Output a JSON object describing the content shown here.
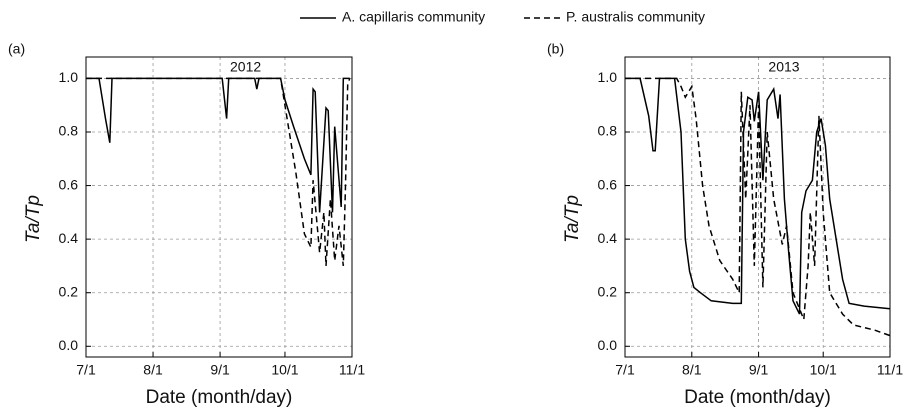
{
  "chart_data": [
    {
      "type": "line",
      "panel": "(a)",
      "annotation": "2012",
      "x_label": "Date (month/day)",
      "y_label": "Ta/Tp",
      "xlim": [
        "7/1",
        "11/1"
      ],
      "xticks": [
        "7/1",
        "8/1",
        "9/1",
        "10/1",
        "11/1"
      ],
      "ylim": [
        -0.04,
        1.08
      ],
      "yticks": [
        {
          "value": 0,
          "label": "0.0"
        },
        0.2,
        0.4,
        0.6,
        0.8,
        {
          "value": 1,
          "label": "1.0"
        }
      ],
      "grid": true,
      "series": [
        {
          "name": "A. capillaris community",
          "color": "#000000",
          "linestyle": "solid",
          "x": [
            "7/1",
            "7/7",
            "7/10",
            "7/12",
            "7/13",
            "9/2",
            "9/4",
            "9/5",
            "9/17",
            "9/18",
            "9/19",
            "9/29",
            "10/1",
            "10/5",
            "10/10",
            "10/13",
            "10/14",
            "10/15",
            "10/17",
            "10/20",
            "10/21",
            "10/23",
            "10/24",
            "10/27",
            "10/28",
            "10/31"
          ],
          "values": [
            1,
            1,
            0.85,
            0.76,
            1,
            1,
            0.85,
            1,
            1,
            0.96,
            1,
            1,
            0.92,
            0.82,
            0.7,
            0.64,
            0.96,
            0.95,
            0.5,
            0.89,
            0.88,
            0.5,
            0.82,
            0.52,
            1,
            1
          ]
        },
        {
          "name": "P. australis community",
          "color": "#000000",
          "linestyle": "dashed",
          "x": [
            "7/1",
            "9/29",
            "10/2",
            "10/6",
            "10/10",
            "10/13",
            "10/14",
            "10/17",
            "10/19",
            "10/20",
            "10/22",
            "10/24",
            "10/26",
            "10/28",
            "10/29",
            "10/30",
            "10/31"
          ],
          "values": [
            1,
            1,
            0.85,
            0.65,
            0.42,
            0.37,
            0.62,
            0.35,
            0.5,
            0.3,
            0.55,
            0.32,
            0.45,
            0.3,
            0.6,
            0.98,
            1
          ]
        }
      ]
    },
    {
      "type": "line",
      "panel": "(b)",
      "annotation": "2013",
      "x_label": "Date (month/day)",
      "y_label": "Ta/Tp",
      "xlim": [
        "7/1",
        "11/1"
      ],
      "xticks": [
        "7/1",
        "8/1",
        "9/1",
        "10/1",
        "11/1"
      ],
      "ylim": [
        -0.04,
        1.08
      ],
      "yticks": [
        {
          "value": 0,
          "label": "0.0"
        },
        0.2,
        0.4,
        0.6,
        0.8,
        {
          "value": 1,
          "label": "1.0"
        }
      ],
      "grid": true,
      "series": [
        {
          "color": "#000000",
          "linestyle": "solid",
          "x": [
            "7/1",
            "7/8",
            "7/12",
            "7/14",
            "7/15",
            "7/17",
            "7/24",
            "7/27",
            "7/29",
            "7/31",
            "8/2",
            "8/5",
            "8/10",
            "8/20",
            "8/24",
            "8/25",
            "8/27",
            "8/29",
            "8/30",
            "9/1",
            "9/3",
            "9/5",
            "9/8",
            "9/10",
            "9/11",
            "9/13",
            "9/15",
            "9/17",
            "9/20",
            "9/21",
            "9/23",
            "9/26",
            "9/28",
            "9/30",
            "10/2",
            "10/4",
            "10/6",
            "10/10",
            "10/13",
            "10/20",
            "11/1"
          ],
          "values": [
            1,
            1,
            0.86,
            0.73,
            0.73,
            1,
            1,
            0.8,
            0.4,
            0.28,
            0.22,
            0.2,
            0.17,
            0.16,
            0.16,
            0.8,
            0.93,
            0.92,
            0.84,
            0.95,
            0.62,
            0.92,
            0.96,
            0.85,
            0.94,
            0.55,
            0.35,
            0.17,
            0.12,
            0.5,
            0.58,
            0.62,
            0.8,
            0.85,
            0.75,
            0.55,
            0.45,
            0.25,
            0.16,
            0.15,
            0.14
          ]
        },
        {
          "color": "#000000",
          "linestyle": "dashed",
          "x": [
            "7/1",
            "7/25",
            "7/27",
            "7/29",
            "8/1",
            "8/3",
            "8/6",
            "8/9",
            "8/14",
            "8/20",
            "8/23",
            "8/24",
            "8/26",
            "8/28",
            "8/30",
            "9/1",
            "9/3",
            "9/5",
            "9/8",
            "9/12",
            "9/14",
            "9/17",
            "9/22",
            "9/24",
            "9/25",
            "9/27",
            "9/29",
            "10/1",
            "10/4",
            "10/10",
            "10/15",
            "10/25",
            "11/1"
          ],
          "values": [
            1,
            1,
            0.97,
            0.93,
            0.97,
            0.85,
            0.6,
            0.45,
            0.32,
            0.25,
            0.2,
            0.95,
            0.55,
            0.9,
            0.3,
            0.9,
            0.22,
            0.8,
            0.55,
            0.38,
            0.45,
            0.2,
            0.1,
            0.3,
            0.5,
            0.3,
            0.86,
            0.5,
            0.2,
            0.12,
            0.08,
            0.06,
            0.04
          ]
        }
      ]
    }
  ]
}
